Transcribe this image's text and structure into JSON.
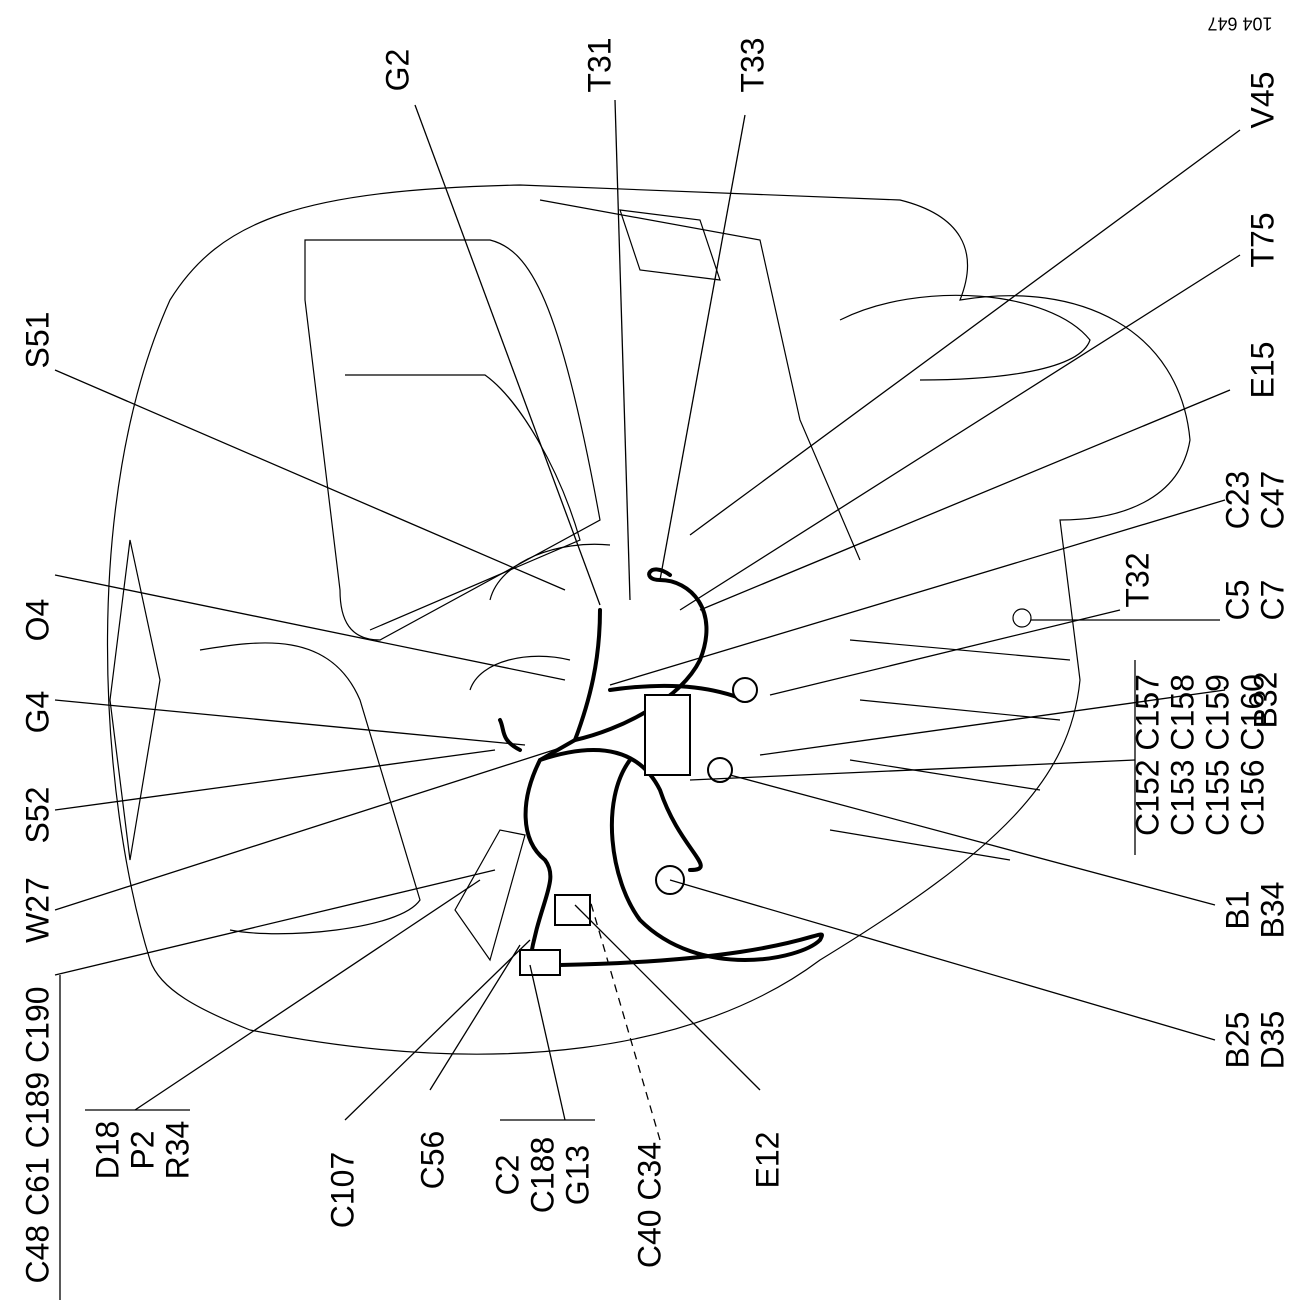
{
  "ref": "104 647",
  "callouts": [
    {
      "lines": [
        "G2"
      ]
    },
    {
      "lines": [
        "T31"
      ]
    },
    {
      "lines": [
        "T33"
      ]
    },
    {
      "lines": [
        "V45"
      ]
    },
    {
      "lines": [
        "T75"
      ]
    },
    {
      "lines": [
        "E15"
      ]
    },
    {
      "lines": [
        "C23",
        "C47"
      ]
    },
    {
      "lines": [
        "T32"
      ]
    },
    {
      "lines": [
        "C5",
        "C7"
      ]
    },
    {
      "lines": [
        "B32"
      ]
    },
    {
      "lines": [
        "C152 C157",
        "C153 C158",
        "C155 C159",
        "C156 C160"
      ]
    },
    {
      "lines": [
        "B1",
        "B34"
      ]
    },
    {
      "lines": [
        "B25",
        "D35"
      ]
    },
    {
      "lines": [
        "S51"
      ]
    },
    {
      "lines": [
        "O4"
      ]
    },
    {
      "lines": [
        "G4"
      ]
    },
    {
      "lines": [
        "S52"
      ]
    },
    {
      "lines": [
        "W27"
      ]
    },
    {
      "lines": [
        "C48 C61 C189 C190"
      ]
    },
    {
      "lines": [
        "D18",
        "P2",
        "R34"
      ]
    },
    {
      "lines": [
        "C107"
      ]
    },
    {
      "lines": [
        "C56"
      ]
    },
    {
      "lines": [
        "C2",
        "C188",
        "G13"
      ]
    },
    {
      "lines": [
        "C40 C34"
      ]
    },
    {
      "lines": [
        "E12"
      ]
    }
  ]
}
